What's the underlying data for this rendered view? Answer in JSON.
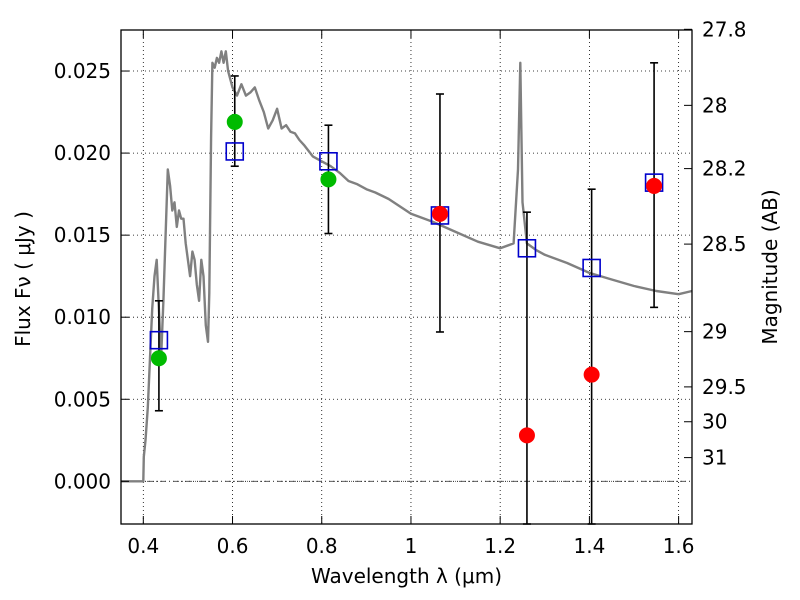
{
  "chart_data": {
    "type": "scatter",
    "x_axis": {
      "label": "Wavelength  λ (μm)",
      "range": [
        0.35,
        1.63
      ],
      "ticks": [
        0.4,
        0.6,
        0.8,
        1.0,
        1.2,
        1.4,
        1.6
      ],
      "tick_labels": [
        "0.4",
        "0.6",
        "0.8",
        "1",
        "1.2",
        "1.4",
        "1.6"
      ]
    },
    "y_axis": {
      "label": "Flux  Fν  ( μJy )",
      "range": [
        -0.0026,
        0.0275
      ],
      "ticks": [
        0.0,
        0.005,
        0.01,
        0.015,
        0.02,
        0.025
      ],
      "tick_labels": [
        "0.000",
        "0.005",
        "0.010",
        "0.015",
        "0.020",
        "0.025"
      ]
    },
    "right_axis": {
      "label": "Magnitude (AB)",
      "ticks": [
        27.8,
        28.0,
        28.2,
        28.5,
        29.0,
        29.5,
        30.0,
        31.0
      ],
      "tick_labels": [
        "27.8",
        "28",
        "28.2",
        "28.5",
        "29",
        "29.5",
        "30",
        "31"
      ]
    },
    "grid": true,
    "colors": {
      "model": "#808080",
      "detected": "#00bb00",
      "undetected": "#ff0000",
      "model_band": "#0000cc",
      "errorbar": "#000000"
    },
    "model_sed": {
      "x": [
        0.35,
        0.4,
        0.401,
        0.405,
        0.41,
        0.415,
        0.42,
        0.425,
        0.43,
        0.435,
        0.44,
        0.445,
        0.45,
        0.455,
        0.46,
        0.465,
        0.47,
        0.475,
        0.48,
        0.485,
        0.49,
        0.495,
        0.5,
        0.505,
        0.51,
        0.515,
        0.52,
        0.525,
        0.53,
        0.535,
        0.54,
        0.545,
        0.548,
        0.552,
        0.555,
        0.56,
        0.565,
        0.57,
        0.575,
        0.58,
        0.585,
        0.59,
        0.595,
        0.6,
        0.61,
        0.62,
        0.63,
        0.64,
        0.65,
        0.66,
        0.67,
        0.68,
        0.69,
        0.7,
        0.71,
        0.72,
        0.73,
        0.74,
        0.75,
        0.76,
        0.78,
        0.8,
        0.82,
        0.84,
        0.86,
        0.88,
        0.9,
        0.92,
        0.95,
        1.0,
        1.05,
        1.1,
        1.15,
        1.2,
        1.23,
        1.24,
        1.245,
        1.25,
        1.26,
        1.28,
        1.3,
        1.35,
        1.4,
        1.45,
        1.5,
        1.55,
        1.6,
        1.63
      ],
      "y": [
        0.0,
        0.0,
        0.0015,
        0.0025,
        0.0045,
        0.0075,
        0.0105,
        0.0125,
        0.0135,
        0.0105,
        0.0075,
        0.011,
        0.015,
        0.019,
        0.018,
        0.0165,
        0.017,
        0.0155,
        0.0165,
        0.016,
        0.016,
        0.0145,
        0.0135,
        0.0125,
        0.014,
        0.0135,
        0.012,
        0.011,
        0.0135,
        0.0125,
        0.0095,
        0.0085,
        0.0115,
        0.021,
        0.0255,
        0.0252,
        0.0258,
        0.0255,
        0.0262,
        0.0255,
        0.0262,
        0.025,
        0.0245,
        0.024,
        0.0235,
        0.0242,
        0.0235,
        0.0237,
        0.024,
        0.0232,
        0.0225,
        0.0215,
        0.022,
        0.0227,
        0.0215,
        0.0217,
        0.0213,
        0.0212,
        0.0208,
        0.0205,
        0.0198,
        0.0195,
        0.0192,
        0.0188,
        0.0183,
        0.0181,
        0.0178,
        0.0176,
        0.0172,
        0.0163,
        0.0158,
        0.0152,
        0.0146,
        0.0142,
        0.0145,
        0.019,
        0.0255,
        0.017,
        0.0145,
        0.0141,
        0.0138,
        0.0133,
        0.0127,
        0.0123,
        0.0119,
        0.0116,
        0.0114,
        0.0116
      ]
    },
    "series": [
      {
        "marker": "open-square",
        "x": [
          0.435,
          0.605,
          0.815,
          1.065,
          1.26,
          1.405,
          1.545
        ],
        "y": [
          0.0086,
          0.0201,
          0.0195,
          0.0162,
          0.0142,
          0.013,
          0.0182
        ]
      },
      {
        "marker": "filled-circle",
        "x": [
          0.435,
          0.605,
          0.815
        ],
        "y": [
          0.0075,
          0.0219,
          0.0184
        ],
        "yerr_low": [
          0.0043,
          0.0192,
          0.0151
        ],
        "yerr_high": [
          0.011,
          0.0247,
          0.0217
        ]
      },
      {
        "marker": "filled-circle",
        "x": [
          1.065,
          1.26,
          1.405,
          1.545
        ],
        "y": [
          0.0163,
          0.0028,
          0.0065,
          0.018
        ],
        "yerr_low": [
          0.0091,
          -0.0026,
          -0.0026,
          0.0106
        ],
        "yerr_high": [
          0.0236,
          0.0164,
          0.0178,
          0.0255
        ]
      }
    ]
  }
}
